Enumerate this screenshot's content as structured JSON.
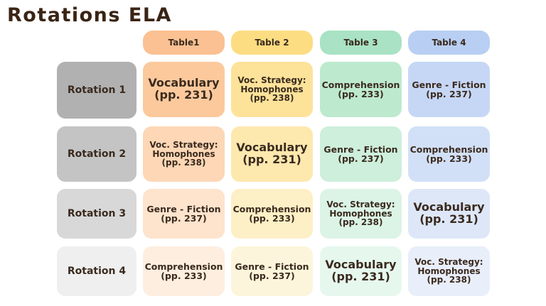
{
  "title": "Rotations ELA",
  "tables": [
    "Table1",
    "Table 2",
    "Table 3",
    "Table 4"
  ],
  "rotations": [
    "Rotation 1",
    "Rotation 2",
    "Rotation 3",
    "Rotation 4"
  ],
  "cells": [
    [
      {
        "l1": "Vocabulary",
        "l2": "(pp. 231)"
      },
      {
        "l1": "Voc. Strategy: Homophones",
        "l2": "(pp. 238)"
      },
      {
        "l1": "Comprehension",
        "l2": "(pp. 233)"
      },
      {
        "l1": "Genre - Fiction",
        "l2": "(pp. 237)"
      }
    ],
    [
      {
        "l1": "Voc. Strategy: Homophones",
        "l2": "(pp. 238)"
      },
      {
        "l1": "Vocabulary",
        "l2": "(pp. 231)"
      },
      {
        "l1": "Genre - Fiction",
        "l2": "(pp. 237)"
      },
      {
        "l1": "Comprehension",
        "l2": "(pp. 233)"
      }
    ],
    [
      {
        "l1": "Genre - Fiction",
        "l2": "(pp. 237)"
      },
      {
        "l1": "Comprehension",
        "l2": "(pp. 233)"
      },
      {
        "l1": "Voc. Strategy: Homophones",
        "l2": "(pp. 238)"
      },
      {
        "l1": "Vocabulary",
        "l2": "(pp. 231)"
      }
    ],
    [
      {
        "l1": "Comprehension",
        "l2": "(pp. 233)"
      },
      {
        "l1": "Genre - Fiction",
        "l2": "(pp. 237)"
      },
      {
        "l1": "Vocabulary",
        "l2": "(pp. 231)"
      },
      {
        "l1": "Voc. Strategy: Homophones",
        "l2": "(pp. 238)"
      }
    ]
  ],
  "colors": {
    "header": [
      "#fbc192",
      "#fddd82",
      "#a9e2c4",
      "#b8cff3"
    ],
    "rows": [
      [
        "#fcc99c",
        "#fde29a",
        "#bdeacf",
        "#c6d7f6"
      ],
      [
        "#fdd7b6",
        "#fde8ae",
        "#cdefdc",
        "#d2e0f7"
      ],
      [
        "#fee3cd",
        "#fdefc6",
        "#dbf4e6",
        "#dde7f8"
      ],
      [
        "#feeedf",
        "#fdf5db",
        "#e6f8ee",
        "#e8eefa"
      ]
    ],
    "rotation": [
      "#b1b1b1",
      "#c4c4c4",
      "#d8d8d8",
      "#efefef"
    ]
  }
}
